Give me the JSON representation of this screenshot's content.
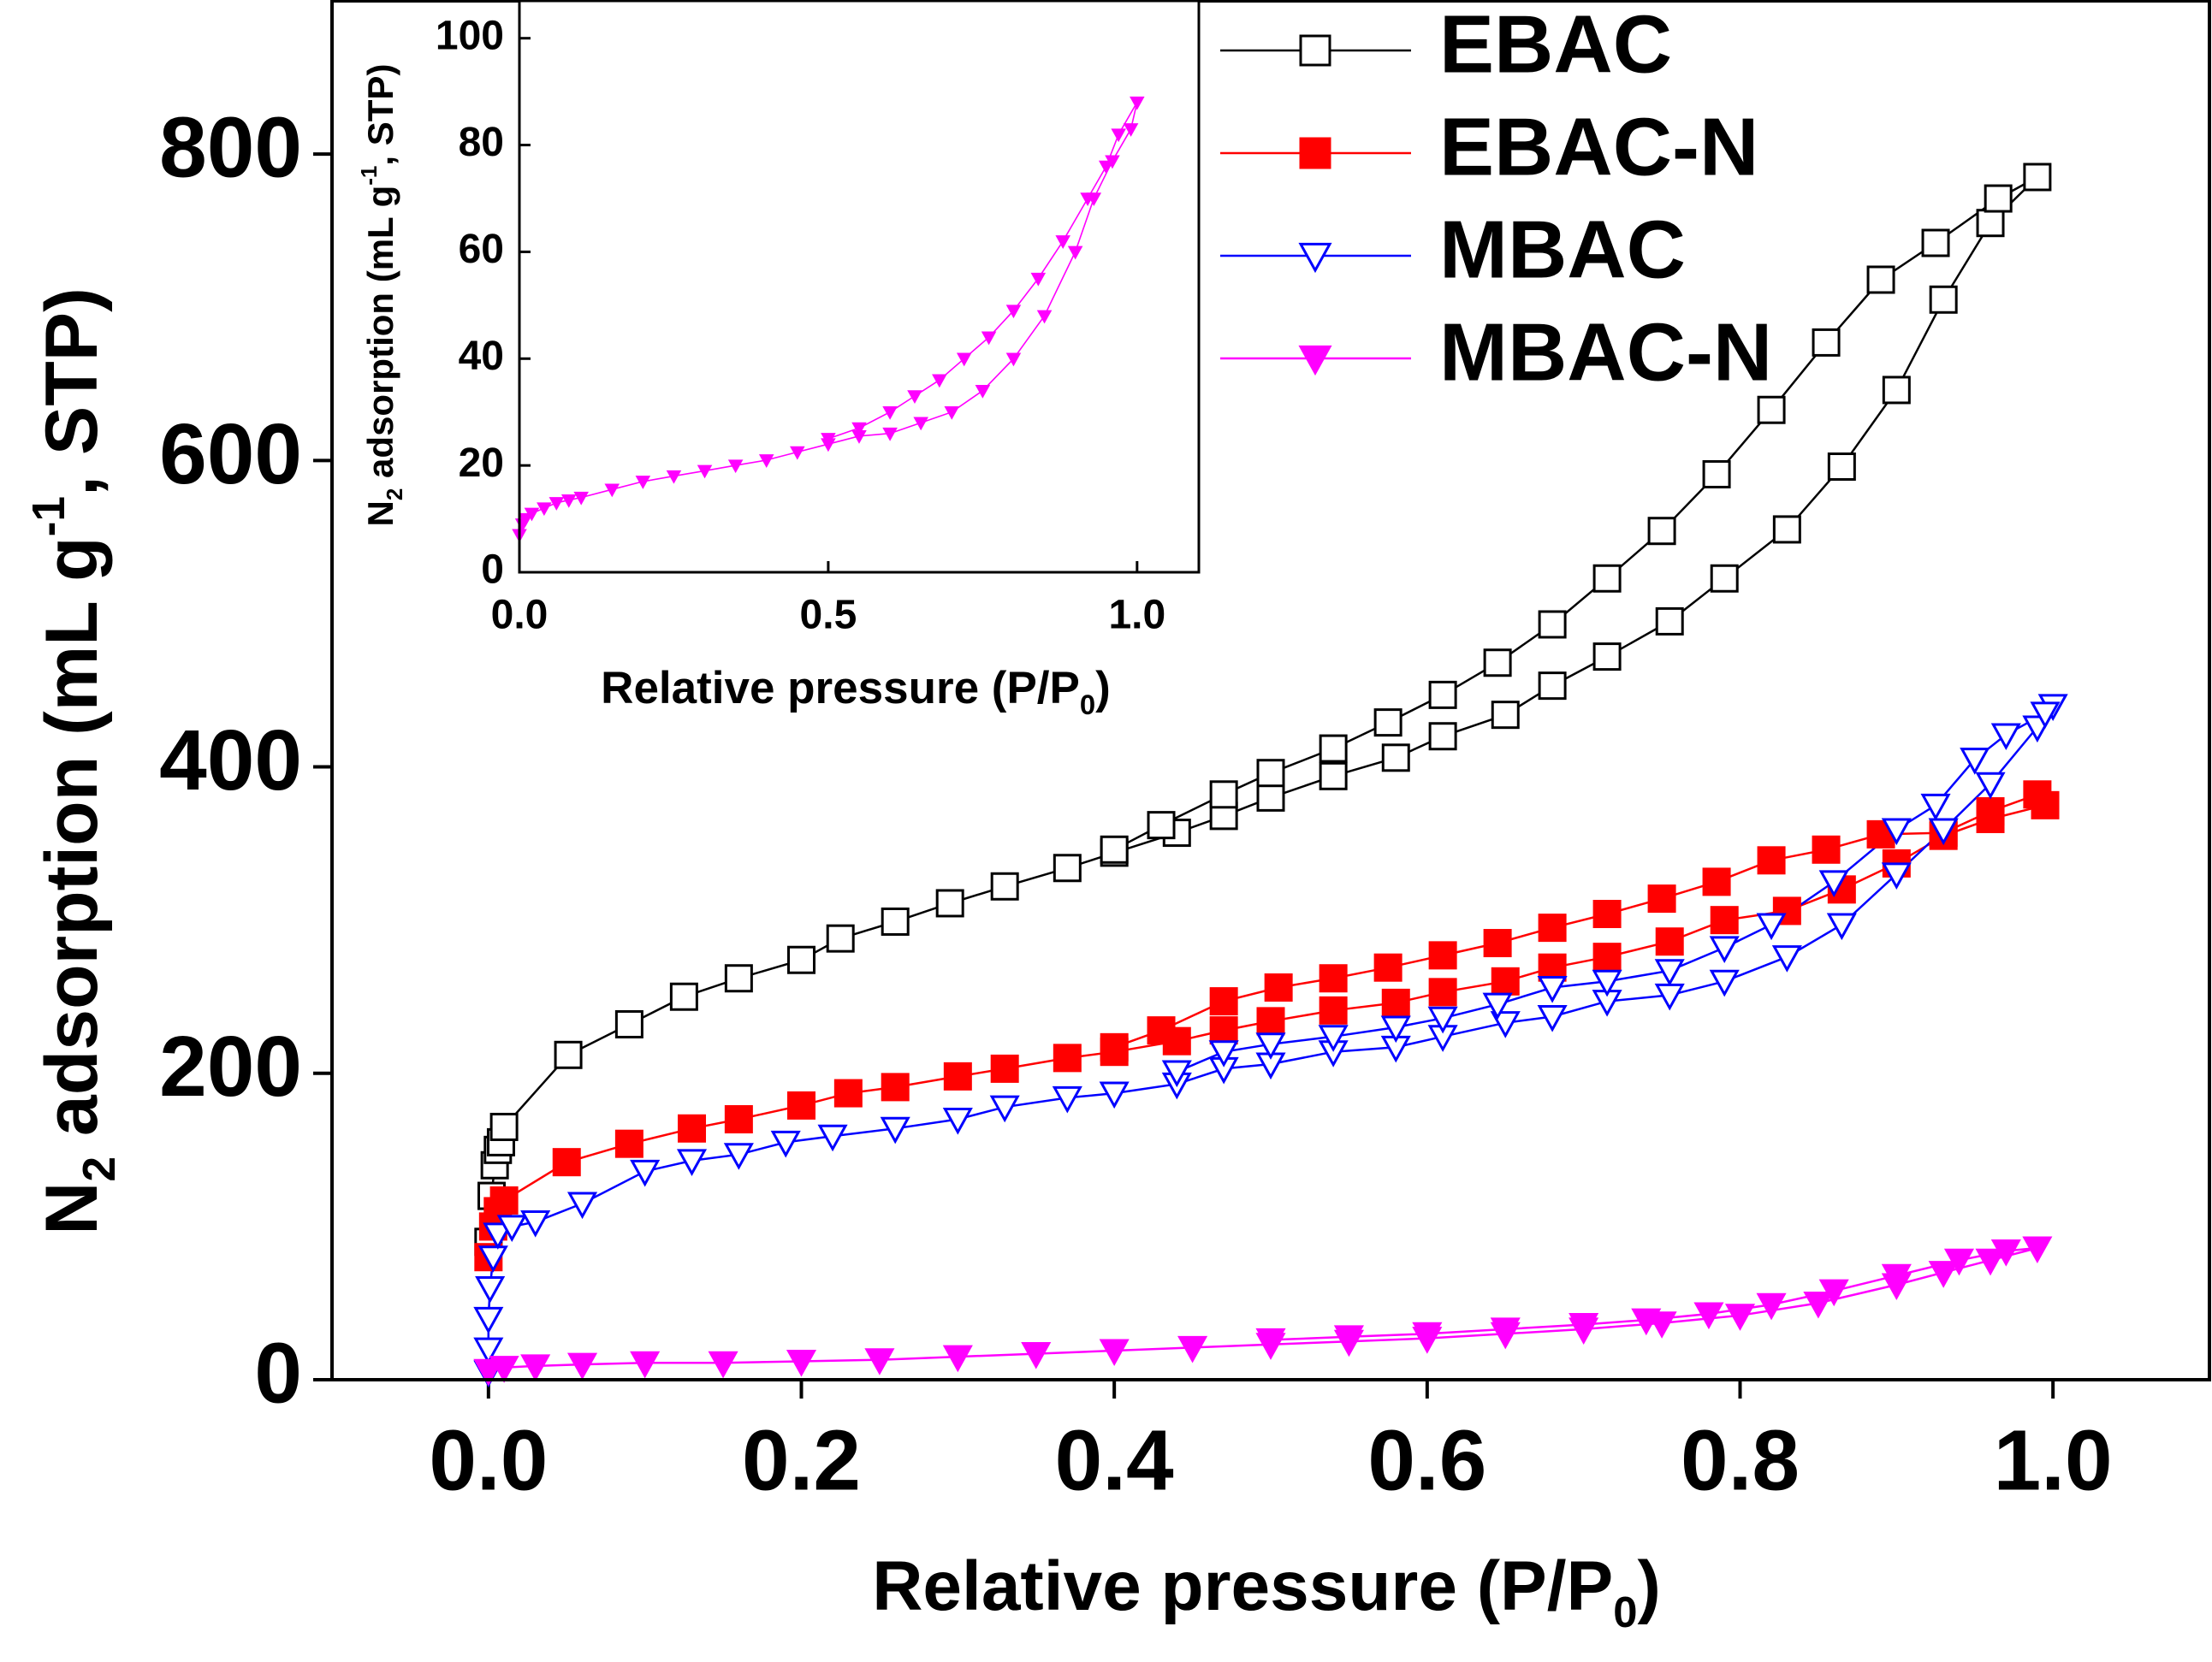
{
  "chart_data": [
    {
      "type": "line",
      "xlabel": [
        {
          "text": "Relative pressure (P/P"
        },
        {
          "text": "0",
          "shift": "sub"
        },
        {
          "text": ")"
        }
      ],
      "ylabel": [
        {
          "text": "N"
        },
        {
          "text": "2",
          "shift": "sub"
        },
        {
          "text": " adsorption (mL g"
        },
        {
          "text": "-1",
          "shift": "super"
        },
        {
          "text": ", STP)"
        }
      ],
      "xlim": [
        -0.1,
        1.1
      ],
      "ylim": [
        0,
        900
      ],
      "xticks": [
        {
          "value": 0,
          "label": "0.0"
        },
        0.2,
        0.4,
        0.6,
        0.8,
        {
          "value": 1,
          "label": "1.0"
        }
      ],
      "yticks": [
        0,
        200,
        400,
        600,
        800
      ],
      "legend": "upper right",
      "series": [
        {
          "name": "EBAC",
          "color": "#000000",
          "marker": "square",
          "filled": false,
          "x": [
            0,
            0.002,
            0.004,
            0.006,
            0.008,
            0.01,
            0.051,
            0.09,
            0.125,
            0.16,
            0.2,
            0.225,
            0.26,
            0.295,
            0.33,
            0.37,
            0.4,
            0.44,
            0.47,
            0.5,
            0.54,
            0.58,
            0.61,
            0.65,
            0.68,
            0.715,
            0.755,
            0.79,
            0.83,
            0.865,
            0.9,
            0.93,
            0.96,
            0.99,
            0.965,
            0.925,
            0.89,
            0.855,
            0.82,
            0.785,
            0.75,
            0.715,
            0.68,
            0.645,
            0.61,
            0.575,
            0.54,
            0.5,
            0.47,
            0.43,
            0.4
          ],
          "values": [
            90,
            120,
            140,
            150,
            155,
            165,
            212,
            232,
            250,
            262,
            274,
            288,
            299,
            311,
            322,
            334,
            344,
            357,
            368,
            380,
            394,
            406,
            420,
            434,
            453,
            472,
            495,
            523,
            555,
            596,
            646,
            705,
            755,
            785,
            771,
            742,
            718,
            677,
            633,
            591,
            554,
            523,
            493,
            468,
            447,
            429,
            412,
            396,
            382,
            362,
            346
          ]
        },
        {
          "name": "EBAC-N",
          "color": "#ff0000",
          "marker": "square",
          "filled": true,
          "x": [
            0,
            0.003,
            0.006,
            0.01,
            0.05,
            0.09,
            0.13,
            0.16,
            0.2,
            0.23,
            0.26,
            0.3,
            0.33,
            0.37,
            0.4,
            0.44,
            0.47,
            0.5,
            0.54,
            0.58,
            0.61,
            0.65,
            0.68,
            0.715,
            0.755,
            0.79,
            0.83,
            0.865,
            0.9,
            0.93,
            0.96,
            0.995,
            0.99,
            0.96,
            0.93,
            0.89,
            0.855,
            0.82,
            0.785,
            0.75,
            0.715,
            0.68,
            0.645,
            0.61,
            0.575,
            0.54,
            0.505,
            0.47,
            0.43,
            0.4
          ],
          "values": [
            80,
            100,
            110,
            117,
            142,
            154,
            164,
            170,
            179,
            187,
            191,
            198,
            203,
            210,
            214,
            221,
            228,
            234,
            241,
            246,
            253,
            260,
            269,
            276,
            286,
            300,
            306,
            320,
            337,
            355,
            366,
            375,
            382,
            371,
            357,
            356,
            346,
            339,
            325,
            314,
            304,
            295,
            285,
            277,
            269,
            262,
            256,
            247,
            228,
            217
          ]
        },
        {
          "name": "MBAC",
          "color": "#0000ff",
          "marker": "triangle-down",
          "filled": false,
          "x": [
            0,
            0,
            0,
            0.001,
            0.003,
            0.006,
            0.015,
            0.03,
            0.06,
            0.1,
            0.13,
            0.16,
            0.19,
            0.22,
            0.26,
            0.3,
            0.33,
            0.37,
            0.4,
            0.44,
            0.47,
            0.5,
            0.54,
            0.58,
            0.61,
            0.65,
            0.68,
            0.715,
            0.755,
            0.79,
            0.83,
            0.865,
            0.9,
            0.93,
            0.96,
            0.99,
            1,
            0.995,
            0.97,
            0.95,
            0.925,
            0.9,
            0.86,
            0.82,
            0.79,
            0.755,
            0.715,
            0.68,
            0.645,
            0.61,
            0.58,
            0.54,
            0.5,
            0.47,
            0.44
          ],
          "values": [
            5,
            20,
            40,
            60,
            80,
            95,
            100,
            103,
            115,
            136,
            143,
            147,
            155,
            159,
            164,
            170,
            178,
            184,
            187,
            193,
            203,
            206,
            214,
            217,
            224,
            233,
            237,
            247,
            251,
            260,
            276,
            297,
            330,
            359,
            389,
            426,
            440,
            435,
            421,
            405,
            375,
            359,
            325,
            297,
            282,
            267,
            260,
            256,
            245,
            236,
            230,
            224,
            219,
            214,
            201
          ]
        },
        {
          "name": "MBAC-N",
          "color": "#ff00ff",
          "marker": "triangle-down",
          "filled": true,
          "x": [
            0,
            0.01,
            0.03,
            0.06,
            0.1,
            0.15,
            0.2,
            0.25,
            0.3,
            0.35,
            0.4,
            0.45,
            0.5,
            0.55,
            0.6,
            0.65,
            0.7,
            0.75,
            0.8,
            0.85,
            0.9,
            0.93,
            0.96,
            0.99,
            0.97,
            0.94,
            0.9,
            0.86,
            0.82,
            0.78,
            0.74,
            0.7,
            0.65,
            0.6,
            0.55,
            0.5
          ],
          "values": [
            6,
            8,
            9,
            10,
            11,
            11,
            12,
            13,
            15,
            17,
            19,
            21,
            23,
            25,
            27,
            30,
            33,
            37,
            42,
            50,
            62,
            70,
            78,
            86,
            84,
            78,
            68,
            58,
            49,
            43,
            39,
            36,
            33,
            30,
            28,
            26
          ]
        }
      ]
    },
    {
      "type": "line",
      "xlabel": [
        {
          "text": "Relative pressure (P/P"
        },
        {
          "text": "0",
          "shift": "sub"
        },
        {
          "text": ")"
        }
      ],
      "ylabel": [
        {
          "text": "N"
        },
        {
          "text": "2",
          "shift": "sub"
        },
        {
          "text": " adsorption (mL g"
        },
        {
          "text": "-1",
          "shift": "super"
        },
        {
          "text": ", STP)"
        }
      ],
      "xlim": [
        0,
        1.1
      ],
      "ylim": [
        0,
        107
      ],
      "xticks": [
        {
          "value": 0,
          "label": "0.0"
        },
        0.5,
        {
          "value": 1,
          "label": "1.0"
        }
      ],
      "yticks": [
        0,
        20,
        40,
        60,
        80,
        100
      ],
      "series": [
        {
          "color": "#ff00ff",
          "marker": "triangle-down",
          "filled": true,
          "x": [
            0,
            0.005,
            0.01,
            0.02,
            0.04,
            0.06,
            0.08,
            0.1,
            0.15,
            0.2,
            0.25,
            0.3,
            0.35,
            0.4,
            0.45,
            0.5,
            0.55,
            0.6,
            0.65,
            0.7,
            0.75,
            0.8,
            0.85,
            0.9,
            0.93,
            0.96,
            0.99,
            1,
            0.97,
            0.95,
            0.92,
            0.88,
            0.84,
            0.8,
            0.76,
            0.72,
            0.68,
            0.64,
            0.6,
            0.55,
            0.5
          ],
          "values": [
            7,
            9,
            10,
            11,
            12,
            13,
            13.5,
            14,
            15.5,
            17,
            18,
            19,
            20,
            21,
            22.5,
            24,
            25.5,
            26,
            28,
            30,
            34,
            40,
            48,
            60,
            70,
            77,
            83,
            88,
            82,
            76,
            70,
            62,
            55,
            49,
            44,
            40,
            36,
            33,
            30,
            27,
            25
          ]
        }
      ]
    }
  ]
}
